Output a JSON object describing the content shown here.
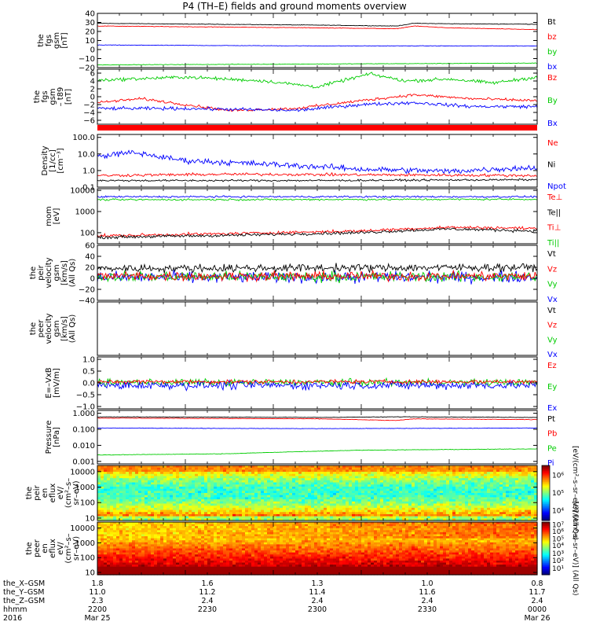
{
  "title": "P4 (TH–E) fields and ground moments overview",
  "colors": {
    "black": "#000000",
    "red": "#ff0000",
    "green": "#00cc00",
    "blue": "#0000ff"
  },
  "chart_data": {
    "type": "line",
    "time_axis": {
      "rows": [
        {
          "label": "the_X–GSM",
          "values": [
            "1.8",
            "1.6",
            "1.3",
            "1.0",
            "0.8"
          ]
        },
        {
          "label": "the_Y–GSM",
          "values": [
            "11.0",
            "11.2",
            "11.4",
            "11.6",
            "11.7"
          ]
        },
        {
          "label": "the_Z–GSM",
          "values": [
            "2.3",
            "2.4",
            "2.4",
            "2.4",
            "2.4"
          ]
        },
        {
          "label": "hhmm",
          "values": [
            "2200",
            "2230",
            "2300",
            "2330",
            "0000"
          ]
        },
        {
          "label": "2016",
          "values": [
            "Mar 25",
            "",
            "",
            "",
            "Mar 26"
          ]
        }
      ]
    },
    "panels": [
      {
        "id": "fgs",
        "ylabel": [
          "the",
          "fgs",
          "gsm",
          "[nT]"
        ],
        "ylim": [
          -20,
          40
        ],
        "ticks": [
          {
            "v": 40,
            "t": "40"
          },
          {
            "v": 30,
            "t": "30"
          },
          {
            "v": 20,
            "t": "20"
          },
          {
            "v": 10,
            "t": "10"
          },
          {
            "v": 0,
            "t": "0"
          },
          {
            "v": -10,
            "t": "−10"
          },
          {
            "v": -20,
            "t": "−20"
          }
        ],
        "legend": [
          {
            "t": "Bt",
            "c": "#000000"
          },
          {
            "t": "bz",
            "c": "#ff0000"
          },
          {
            "t": "by",
            "c": "#00cc00"
          },
          {
            "t": "bx",
            "c": "#0000ff"
          }
        ],
        "series": [
          {
            "color": "#000000",
            "noise": 0.4,
            "x": [
              0,
              0.25,
              0.5,
              0.68,
              0.72,
              0.8,
              1
            ],
            "y": [
              29,
              28,
              27,
              26,
              29,
              28.5,
              28
            ]
          },
          {
            "color": "#ff0000",
            "noise": 0.4,
            "x": [
              0,
              0.25,
              0.5,
              0.68,
              0.72,
              0.8,
              1
            ],
            "y": [
              26,
              25,
              24,
              23,
              26,
              24,
              22
            ]
          },
          {
            "color": "#0000ff",
            "noise": 0.4,
            "x": [
              0,
              0.5,
              1
            ],
            "y": [
              5,
              4,
              4
            ]
          },
          {
            "color": "#00cc00",
            "noise": 0.4,
            "x": [
              0,
              0.5,
              1
            ],
            "y": [
              -17,
              -16,
              -15
            ]
          }
        ]
      },
      {
        "id": "fgs-dsl",
        "ylabel": [
          "the",
          "fgs",
          "gsm",
          "– t89",
          "[nT]"
        ],
        "ylim": [
          -7,
          7
        ],
        "ticks": [
          {
            "v": 6,
            "t": "6"
          },
          {
            "v": 4,
            "t": "4"
          },
          {
            "v": 2,
            "t": "2"
          },
          {
            "v": 0,
            "t": "0"
          },
          {
            "v": -2,
            "t": "−2"
          },
          {
            "v": -4,
            "t": "−4"
          },
          {
            "v": -6,
            "t": "−6"
          }
        ],
        "legend": [
          {
            "t": "Bz",
            "c": "#ff0000"
          },
          {
            "t": "By",
            "c": "#00cc00"
          },
          {
            "t": "Bx",
            "c": "#0000ff"
          }
        ],
        "series": [
          {
            "color": "#00cc00",
            "noise": 0.6,
            "x": [
              0,
              0.2,
              0.38,
              0.5,
              0.62,
              0.7,
              0.8,
              0.9,
              1
            ],
            "y": [
              4.2,
              5,
              4,
              2.5,
              5.8,
              4,
              4.5,
              3.5,
              5
            ]
          },
          {
            "color": "#ff0000",
            "noise": 0.5,
            "x": [
              0,
              0.1,
              0.3,
              0.45,
              0.6,
              0.72,
              0.85,
              1
            ],
            "y": [
              -1.5,
              -0.5,
              -3.5,
              -3,
              -1,
              0.5,
              -0.5,
              -1
            ]
          },
          {
            "color": "#0000ff",
            "noise": 0.6,
            "x": [
              0,
              0.2,
              0.45,
              0.6,
              0.72,
              0.85,
              1
            ],
            "y": [
              -3,
              -3,
              -3.5,
              -2,
              -1.5,
              -2.5,
              -2.5
            ]
          }
        ]
      },
      {
        "id": "mom-density",
        "ylabel": [
          "Density",
          "[1/cc]",
          "[cm⁻³]"
        ],
        "log": true,
        "ylim": [
          0.1,
          150
        ],
        "ticks": [
          {
            "v": 100,
            "t": "100.0"
          },
          {
            "v": 10,
            "t": "10.0"
          },
          {
            "v": 1,
            "t": "1.0"
          },
          {
            "v": 0.1,
            "t": "0.1"
          }
        ],
        "legend": [
          {
            "t": "Ne",
            "c": "#ff0000"
          },
          {
            "t": "Ni",
            "c": "#000000"
          },
          {
            "t": "Npot",
            "c": "#0000ff"
          }
        ],
        "series": [
          {
            "color": "#0000ff",
            "noise": 0.25,
            "x": [
              0,
              0.08,
              0.15,
              0.2,
              0.3,
              0.45,
              0.6,
              0.8,
              1
            ],
            "y": [
              7,
              12,
              6,
              4,
              3,
              2,
              1.2,
              0.9,
              1.5
            ]
          },
          {
            "color": "#ff0000",
            "noise": 0.12,
            "x": [
              0,
              0.3,
              1
            ],
            "y": [
              0.5,
              0.6,
              0.5
            ]
          },
          {
            "color": "#000000",
            "noise": 0.08,
            "x": [
              0,
              0.5,
              1
            ],
            "y": [
              0.25,
              0.25,
              0.28
            ]
          }
        ]
      },
      {
        "id": "mom-temp",
        "ylabel": [
          "mom",
          "[eV]"
        ],
        "log": true,
        "ylim": [
          30,
          12000
        ],
        "ticks": [
          {
            "v": 10000,
            "t": "10000"
          },
          {
            "v": 1000,
            "t": "1000"
          },
          {
            "v": 100,
            "t": "100"
          }
        ],
        "legend": [
          {
            "t": "Te⊥",
            "c": "#ff0000"
          },
          {
            "t": "Te||",
            "c": "#000000"
          },
          {
            "t": "Ti⊥",
            "c": "#ff0000"
          },
          {
            "t": "Ti||",
            "c": "#00cc00"
          }
        ],
        "series": [
          {
            "color": "#0000ff",
            "noise": 0.06,
            "x": [
              0,
              1
            ],
            "y": [
              5000,
              5000
            ]
          },
          {
            "color": "#00cc00",
            "noise": 0.06,
            "x": [
              0,
              1
            ],
            "y": [
              3600,
              3800
            ]
          },
          {
            "color": "#ff0000",
            "noise": 0.1,
            "x": [
              0,
              0.3,
              0.6,
              0.8,
              1
            ],
            "y": [
              70,
              90,
              120,
              180,
              160
            ]
          },
          {
            "color": "#000000",
            "noise": 0.1,
            "x": [
              0,
              0.3,
              0.6,
              0.8,
              1
            ],
            "y": [
              60,
              75,
              100,
              150,
              120
            ]
          }
        ]
      },
      {
        "id": "peir-velocity",
        "ylabel": [
          "the",
          "peir",
          "velocity",
          "gsm",
          "[km/s]",
          "(All Qs)"
        ],
        "ylim": [
          -40,
          60
        ],
        "ticks": [
          {
            "v": 60,
            "t": "60"
          },
          {
            "v": 40,
            "t": "40"
          },
          {
            "v": 20,
            "t": "20"
          },
          {
            "v": 0,
            "t": "0"
          },
          {
            "v": -20,
            "t": "−20"
          },
          {
            "v": -40,
            "t": "−40"
          }
        ],
        "legend": [
          {
            "t": "Vt",
            "c": "#000000"
          },
          {
            "t": "Vz",
            "c": "#ff0000"
          },
          {
            "t": "Vy",
            "c": "#00cc00"
          },
          {
            "t": "Vx",
            "c": "#0000ff"
          }
        ],
        "series": [
          {
            "color": "#0000ff",
            "noise": 14,
            "x": [
              0,
              1
            ],
            "y": [
              2,
              2
            ]
          },
          {
            "color": "#00cc00",
            "noise": 13,
            "x": [
              0,
              1
            ],
            "y": [
              3,
              3
            ]
          },
          {
            "color": "#ff0000",
            "noise": 12,
            "x": [
              0,
              1
            ],
            "y": [
              4,
              4
            ]
          },
          {
            "color": "#000000",
            "noise": 10,
            "x": [
              0,
              1
            ],
            "y": [
              18,
              20
            ]
          }
        ]
      },
      {
        "id": "peer-velocity",
        "ylabel": [
          "the",
          "peer",
          "velocity",
          "gsm",
          "[km/s]",
          "(All Qs)"
        ],
        "ylim": [
          0,
          1
        ],
        "ticks": [],
        "legend": [
          {
            "t": "Vt",
            "c": "#000000"
          },
          {
            "t": "Vz",
            "c": "#ff0000"
          },
          {
            "t": "Vy",
            "c": "#00cc00"
          },
          {
            "t": "Vx",
            "c": "#0000ff"
          }
        ],
        "series": []
      },
      {
        "id": "efield",
        "ylabel": [
          "E=–VxB",
          "[mV/m]"
        ],
        "ylim": [
          -1.1,
          1.1
        ],
        "ticks": [
          {
            "v": 1,
            "t": "1.0"
          },
          {
            "v": 0.5,
            "t": "0.5"
          },
          {
            "v": 0,
            "t": "0.0"
          },
          {
            "v": -0.5,
            "t": "−0.5"
          },
          {
            "v": -1,
            "t": "−1.0"
          }
        ],
        "legend": [
          {
            "t": "Ez",
            "c": "#ff0000"
          },
          {
            "t": "Ey",
            "c": "#00cc00"
          },
          {
            "t": "Ex",
            "c": "#0000ff"
          }
        ],
        "series": [
          {
            "color": "#00cc00",
            "noise": 0.2,
            "x": [
              0,
              1
            ],
            "y": [
              0.02,
              0.02
            ]
          },
          {
            "color": "#0000ff",
            "noise": 0.25,
            "x": [
              0,
              1
            ],
            "y": [
              -0.1,
              -0.1
            ]
          },
          {
            "color": "#ff0000",
            "noise": 0.12,
            "x": [
              0,
              1
            ],
            "y": [
              0.05,
              0.05
            ]
          }
        ]
      },
      {
        "id": "pressure",
        "ylabel": [
          "Pressure",
          "[nPa]"
        ],
        "log": true,
        "ylim": [
          0.0007,
          1.5
        ],
        "ticks": [
          {
            "v": 1,
            "t": "1.000"
          },
          {
            "v": 0.1,
            "t": "0.100"
          },
          {
            "v": 0.01,
            "t": "0.010"
          },
          {
            "v": 0.001,
            "t": "0.001"
          }
        ],
        "legend": [
          {
            "t": "Pt",
            "c": "#000000"
          },
          {
            "t": "Pb",
            "c": "#ff0000"
          },
          {
            "t": "Pe",
            "c": "#00cc00"
          },
          {
            "t": "Pi",
            "c": "#0000ff"
          }
        ],
        "series": [
          {
            "color": "#000000",
            "noise": 0.02,
            "x": [
              0,
              0.5,
              0.7,
              1
            ],
            "y": [
              0.6,
              0.55,
              0.6,
              0.55
            ]
          },
          {
            "color": "#ff0000",
            "noise": 0.02,
            "x": [
              0,
              0.5,
              0.68,
              0.72,
              1
            ],
            "y": [
              0.5,
              0.45,
              0.35,
              0.45,
              0.4
            ]
          },
          {
            "color": "#0000ff",
            "noise": 0.02,
            "x": [
              0,
              0.5,
              1
            ],
            "y": [
              0.12,
              0.11,
              0.12
            ]
          },
          {
            "color": "#00cc00",
            "noise": 0.02,
            "x": [
              0,
              0.3,
              0.6,
              1
            ],
            "y": [
              0.0025,
              0.003,
              0.005,
              0.006
            ]
          }
        ]
      },
      {
        "id": "peir-eflux",
        "type": "heatmap",
        "ylabel": [
          "the",
          "peir",
          "en",
          "eflux",
          "eV/",
          "(cm²–s–",
          "sr–eV)"
        ],
        "log": true,
        "ylim": [
          7,
          25000
        ],
        "ticks": [
          {
            "v": 10000,
            "t": "10000"
          },
          {
            "v": 1000,
            "t": "1000"
          },
          {
            "v": 100,
            "t": "100"
          },
          {
            "v": 10,
            "t": "10"
          }
        ],
        "colorbar": {
          "label": "[eV/(cm²–s–sr–eV)] (All Qs)",
          "ticks": [
            {
              "v": 0.82,
              "t": "10⁶"
            },
            {
              "v": 0.5,
              "t": "10⁵"
            },
            {
              "v": 0.18,
              "t": "10⁴"
            }
          ]
        }
      },
      {
        "id": "peer-eflux",
        "type": "heatmap",
        "ylabel": [
          "the",
          "peer",
          "en",
          "eflux",
          "eV/",
          "(cm²–s–",
          "sr–eV)"
        ],
        "log": true,
        "ylim": [
          7,
          25000
        ],
        "ticks": [
          {
            "v": 10000,
            "t": "10000"
          },
          {
            "v": 1000,
            "t": "1000"
          },
          {
            "v": 100,
            "t": "100"
          },
          {
            "v": 10,
            "t": "10"
          }
        ],
        "colorbar": {
          "label": "[eV/(cm²–s–sr–eV)] (All Qs)",
          "ticks": [
            {
              "v": 0.95,
              "t": "10⁷"
            },
            {
              "v": 0.82,
              "t": "10⁶"
            },
            {
              "v": 0.68,
              "t": "10⁵"
            },
            {
              "v": 0.55,
              "t": "10⁴"
            },
            {
              "v": 0.4,
              "t": "10³"
            },
            {
              "v": 0.27,
              "t": "10²"
            },
            {
              "v": 0.12,
              "t": "10¹"
            }
          ]
        }
      }
    ]
  }
}
